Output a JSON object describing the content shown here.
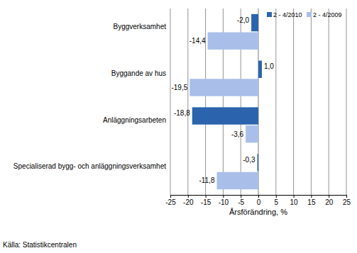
{
  "chart_data": {
    "type": "bar",
    "orientation": "horizontal",
    "categories": [
      "Byggverksamhet",
      "Byggande av hus",
      "Anläggningsarbeten",
      "Specialiserad bygg- och anläggningsverksamhet"
    ],
    "series": [
      {
        "name": "2 - 4/2010",
        "color": "#2b64ad",
        "values": [
          -2.0,
          1.0,
          -18.8,
          -0.3
        ],
        "value_labels": [
          "-2,0",
          "1,0",
          "-18,8",
          "-0,3"
        ]
      },
      {
        "name": "2 - 4/2009",
        "color": "#a9bfe9",
        "values": [
          -14.4,
          -19.5,
          -3.6,
          -11.8
        ],
        "value_labels": [
          "-14,4",
          "-19,5",
          "-3,6",
          "-11,8"
        ]
      }
    ],
    "x_label": "Årsförändring, %",
    "source": "Källa: Statistikcentralen",
    "xlim": [
      -25,
      25
    ],
    "xticks": [
      -25,
      -20,
      -15,
      -10,
      -5,
      0,
      5,
      10,
      15,
      20,
      25
    ],
    "grid": true,
    "legend": "upper right",
    "data_labels": true
  }
}
